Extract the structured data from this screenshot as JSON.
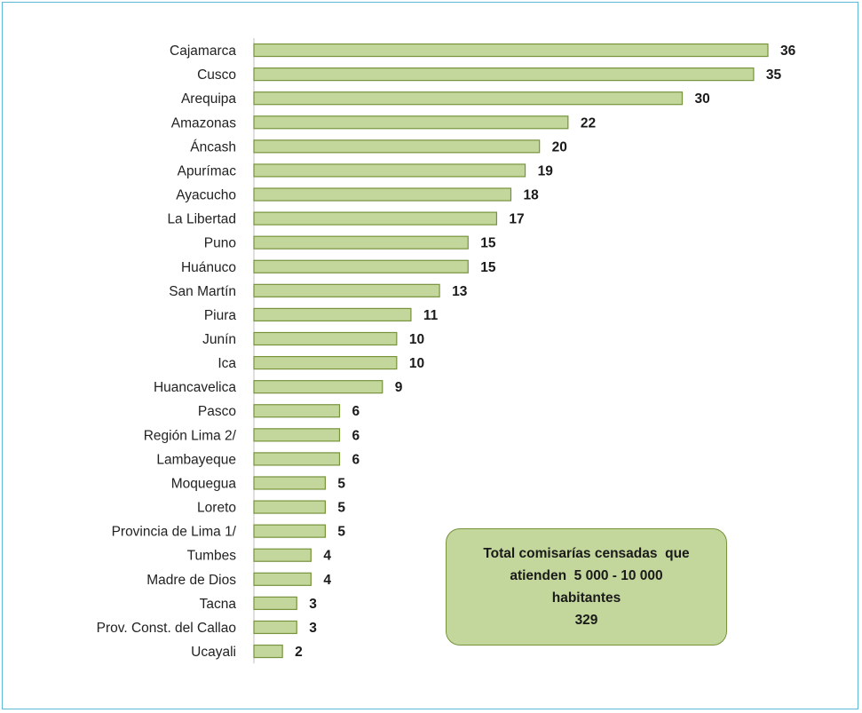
{
  "chart_data": {
    "type": "bar",
    "orientation": "horizontal",
    "categories": [
      "Cajamarca",
      "Cusco",
      "Arequipa",
      "Amazonas",
      "Áncash",
      "Apurímac",
      "Ayacucho",
      "La Libertad",
      "Puno",
      "Huánuco",
      "San Martín",
      "Piura",
      "Junín",
      "Ica",
      "Huancavelica",
      "Pasco",
      "Región Lima 2/",
      "Lambayeque",
      "Moquegua",
      "Loreto",
      "Provincia de Lima 1/",
      "Tumbes",
      "Madre de Dios",
      "Tacna",
      "Prov. Const. del Callao",
      "Ucayali"
    ],
    "values": [
      36,
      35,
      30,
      22,
      20,
      19,
      18,
      17,
      15,
      15,
      13,
      11,
      10,
      10,
      9,
      6,
      6,
      6,
      5,
      5,
      5,
      4,
      4,
      3,
      3,
      2
    ],
    "data_labels": [
      "36",
      "35",
      "30",
      "22",
      "20",
      "19",
      "18",
      "17",
      "15",
      "15",
      "13",
      "11",
      "10",
      "10",
      "9",
      "6",
      "6",
      "6",
      "5",
      "5",
      "5",
      "4",
      "4",
      "3",
      "3",
      "2"
    ],
    "xlim": [
      0,
      36
    ],
    "grid": false,
    "colors": {
      "bar_fill": "#c3d69b",
      "bar_stroke": "#77933c",
      "axis": "#bfbfbf"
    }
  },
  "total_box": {
    "line1": "Total comisarías censadas  que",
    "line2": "atienden  5 000 - 10 000",
    "line3": "habitantes",
    "line4": "329"
  }
}
